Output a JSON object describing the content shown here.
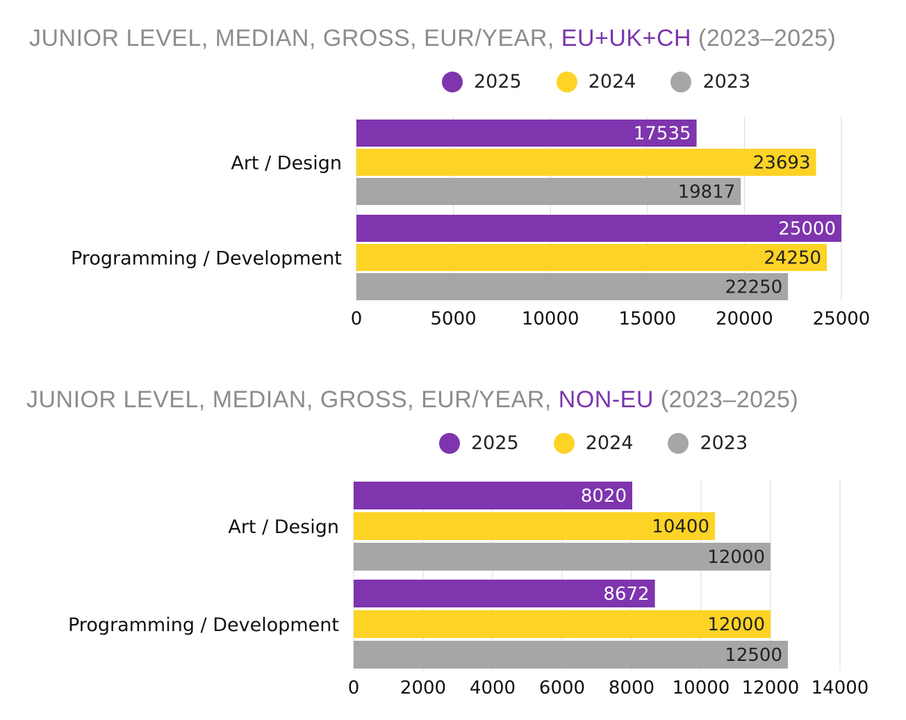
{
  "colors": {
    "y2025": "#7e35ad",
    "y2024": "#fdd325",
    "y2023": "#a6a6a6",
    "title_gray": "#8c8c8c",
    "title_accent": "#7b35ac",
    "grid": "#d9d9d9"
  },
  "chart_data": [
    {
      "type": "bar",
      "orientation": "horizontal",
      "title_prefix": "JUNIOR LEVEL, MEDIAN, GROSS, EUR/YEAR,",
      "title_highlight": "EU+UK+CH",
      "title_suffix": "(2023–2025)",
      "categories": [
        "Art / Design",
        "Programming / Development"
      ],
      "series": [
        {
          "name": "2025",
          "values": [
            17535,
            25000
          ]
        },
        {
          "name": "2024",
          "values": [
            23693,
            24250
          ]
        },
        {
          "name": "2023",
          "values": [
            19817,
            22250
          ]
        }
      ],
      "xlim": [
        0,
        25000
      ],
      "xticks": [
        0,
        5000,
        10000,
        15000,
        20000,
        25000
      ],
      "legend": [
        "2025",
        "2024",
        "2023"
      ]
    },
    {
      "type": "bar",
      "orientation": "horizontal",
      "title_prefix": "JUNIOR LEVEL, MEDIAN, GROSS, EUR/YEAR,",
      "title_highlight": "NON-EU",
      "title_suffix": "(2023–2025)",
      "categories": [
        "Art / Design",
        "Programming / Development"
      ],
      "series": [
        {
          "name": "2025",
          "values": [
            8020,
            8672
          ]
        },
        {
          "name": "2024",
          "values": [
            10400,
            12000
          ]
        },
        {
          "name": "2023",
          "values": [
            12000,
            12500
          ]
        }
      ],
      "xlim": [
        0,
        14000
      ],
      "xticks": [
        0,
        2000,
        4000,
        6000,
        8000,
        10000,
        12000,
        14000
      ],
      "legend": [
        "2025",
        "2024",
        "2023"
      ]
    }
  ]
}
